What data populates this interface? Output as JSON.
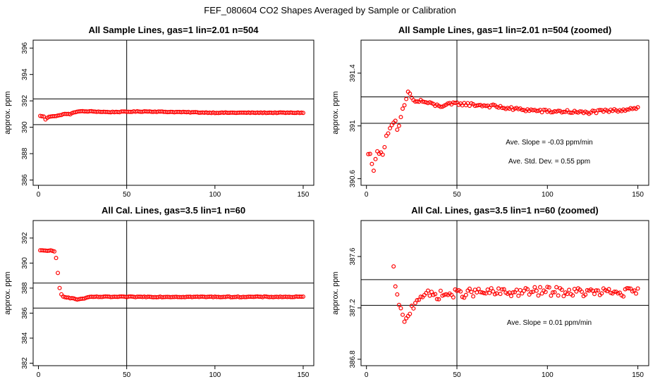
{
  "page_title": "FEF_080604  CO2 Shapes Averaged by Sample or Calibration",
  "colors": {
    "points": "#ff0000",
    "axes": "#000000",
    "background": "#ffffff"
  },
  "chart_data": [
    {
      "type": "scatter",
      "title": "All Sample Lines, gas=1 lin=2.01 n=504",
      "xlabel": "",
      "ylabel": "approx. ppm",
      "xlim": [
        -3,
        156
      ],
      "ylim": [
        385.6,
        396.6
      ],
      "xticks": [
        0,
        50,
        100,
        150
      ],
      "yticks": [
        386,
        388,
        390,
        392,
        394,
        396
      ],
      "hlines": [
        390.2,
        392.15
      ],
      "vline": 50,
      "annotations": [],
      "profile": [
        [
          1,
          390.85
        ],
        [
          2,
          390.85
        ],
        [
          3,
          390.8
        ],
        [
          4,
          390.6
        ],
        [
          5,
          390.7
        ],
        [
          6,
          390.8
        ],
        [
          8,
          390.85
        ],
        [
          10,
          390.85
        ],
        [
          12,
          390.9
        ],
        [
          14,
          391.0
        ],
        [
          16,
          391.0
        ],
        [
          18,
          391.0
        ],
        [
          20,
          391.1
        ],
        [
          22,
          391.2
        ],
        [
          24,
          391.2
        ],
        [
          30,
          391.2
        ],
        [
          40,
          391.15
        ],
        [
          60,
          391.2
        ],
        [
          80,
          391.15
        ],
        [
          100,
          391.1
        ],
        [
          120,
          391.1
        ],
        [
          150,
          391.1
        ]
      ],
      "noise": 0.025,
      "n_points": 150
    },
    {
      "type": "scatter",
      "title": "All Sample Lines, gas=1 lin=2.01 n=504 (zoomed)",
      "xlabel": "",
      "ylabel": "approx. ppm",
      "xlim": [
        -3,
        156
      ],
      "ylim": [
        390.55,
        391.65
      ],
      "xticks": [
        0,
        50,
        100,
        150
      ],
      "yticks": [
        390.6,
        391.0,
        391.4
      ],
      "hlines": [
        391.02,
        391.22
      ],
      "vline": 50,
      "annotations": [
        "Ave. Slope =  -0.03  ppm/min",
        "Ave. Std. Dev. =  0.55  ppm"
      ],
      "profile": [
        [
          1,
          390.78
        ],
        [
          2,
          390.8
        ],
        [
          3,
          390.72
        ],
        [
          4,
          390.65
        ],
        [
          5,
          390.75
        ],
        [
          6,
          390.8
        ],
        [
          7,
          390.8
        ],
        [
          8,
          390.81
        ],
        [
          9,
          390.78
        ],
        [
          10,
          390.85
        ],
        [
          11,
          390.92
        ],
        [
          12,
          390.95
        ],
        [
          14,
          391.0
        ],
        [
          16,
          391.03
        ],
        [
          17,
          390.97
        ],
        [
          18,
          391.0
        ],
        [
          20,
          391.12
        ],
        [
          22,
          391.2
        ],
        [
          23,
          391.26
        ],
        [
          25,
          391.22
        ],
        [
          27,
          391.18
        ],
        [
          30,
          391.19
        ],
        [
          40,
          391.15
        ],
        [
          50,
          391.17
        ],
        [
          60,
          391.16
        ],
        [
          70,
          391.15
        ],
        [
          80,
          391.13
        ],
        [
          90,
          391.12
        ],
        [
          100,
          391.11
        ],
        [
          110,
          391.11
        ],
        [
          120,
          391.1
        ],
        [
          130,
          391.11
        ],
        [
          140,
          391.12
        ],
        [
          150,
          391.14
        ]
      ],
      "noise": 0.012,
      "n_points": 150
    },
    {
      "type": "scatter",
      "title": "All Cal. Lines, gas=3.5 lin=1 n=60",
      "xlabel": "",
      "ylabel": "approx. ppm",
      "xlim": [
        -3,
        156
      ],
      "ylim": [
        381.8,
        393.4
      ],
      "xticks": [
        0,
        50,
        100,
        150
      ],
      "yticks": [
        382,
        384,
        386,
        388,
        390,
        392
      ],
      "hlines": [
        386.4,
        388.4
      ],
      "vline": 50,
      "annotations": [],
      "profile": [
        [
          1,
          391.0
        ],
        [
          3,
          391.0
        ],
        [
          5,
          391.0
        ],
        [
          7,
          391.0
        ],
        [
          9,
          390.9
        ],
        [
          10,
          390.4
        ],
        [
          11,
          389.2
        ],
        [
          12,
          388.0
        ],
        [
          13,
          387.5
        ],
        [
          14,
          387.35
        ],
        [
          15,
          387.3
        ],
        [
          17,
          387.25
        ],
        [
          20,
          387.15
        ],
        [
          22,
          387.1
        ],
        [
          25,
          387.15
        ],
        [
          30,
          387.3
        ],
        [
          40,
          387.3
        ],
        [
          60,
          387.3
        ],
        [
          100,
          387.3
        ],
        [
          150,
          387.3
        ]
      ],
      "noise": 0.03,
      "n_points": 150
    },
    {
      "type": "scatter",
      "title": "All Cal. Lines, gas=3.5 lin=1 n=60 (zoomed)",
      "xlabel": "",
      "ylabel": "approx. ppm",
      "xlim": [
        -3,
        156
      ],
      "ylim": [
        386.75,
        387.88
      ],
      "xticks": [
        0,
        50,
        100,
        150
      ],
      "yticks": [
        386.8,
        387.2,
        387.6
      ],
      "hlines": [
        387.22,
        387.42
      ],
      "vline": 50,
      "annotations": [
        "Ave. Slope =  0.01  ppm/min"
      ],
      "profile": [
        [
          15,
          387.5
        ],
        [
          16,
          387.36
        ],
        [
          17,
          387.27
        ],
        [
          18,
          387.25
        ],
        [
          19,
          387.18
        ],
        [
          20,
          387.12
        ],
        [
          21,
          387.08
        ],
        [
          22,
          387.1
        ],
        [
          23,
          387.15
        ],
        [
          25,
          387.2
        ],
        [
          27,
          387.25
        ],
        [
          30,
          387.3
        ],
        [
          40,
          387.3
        ],
        [
          60,
          387.32
        ],
        [
          80,
          387.32
        ],
        [
          100,
          387.33
        ],
        [
          120,
          387.32
        ],
        [
          150,
          387.32
        ]
      ],
      "noise": 0.035,
      "n_points": 136,
      "x_start": 15
    }
  ]
}
